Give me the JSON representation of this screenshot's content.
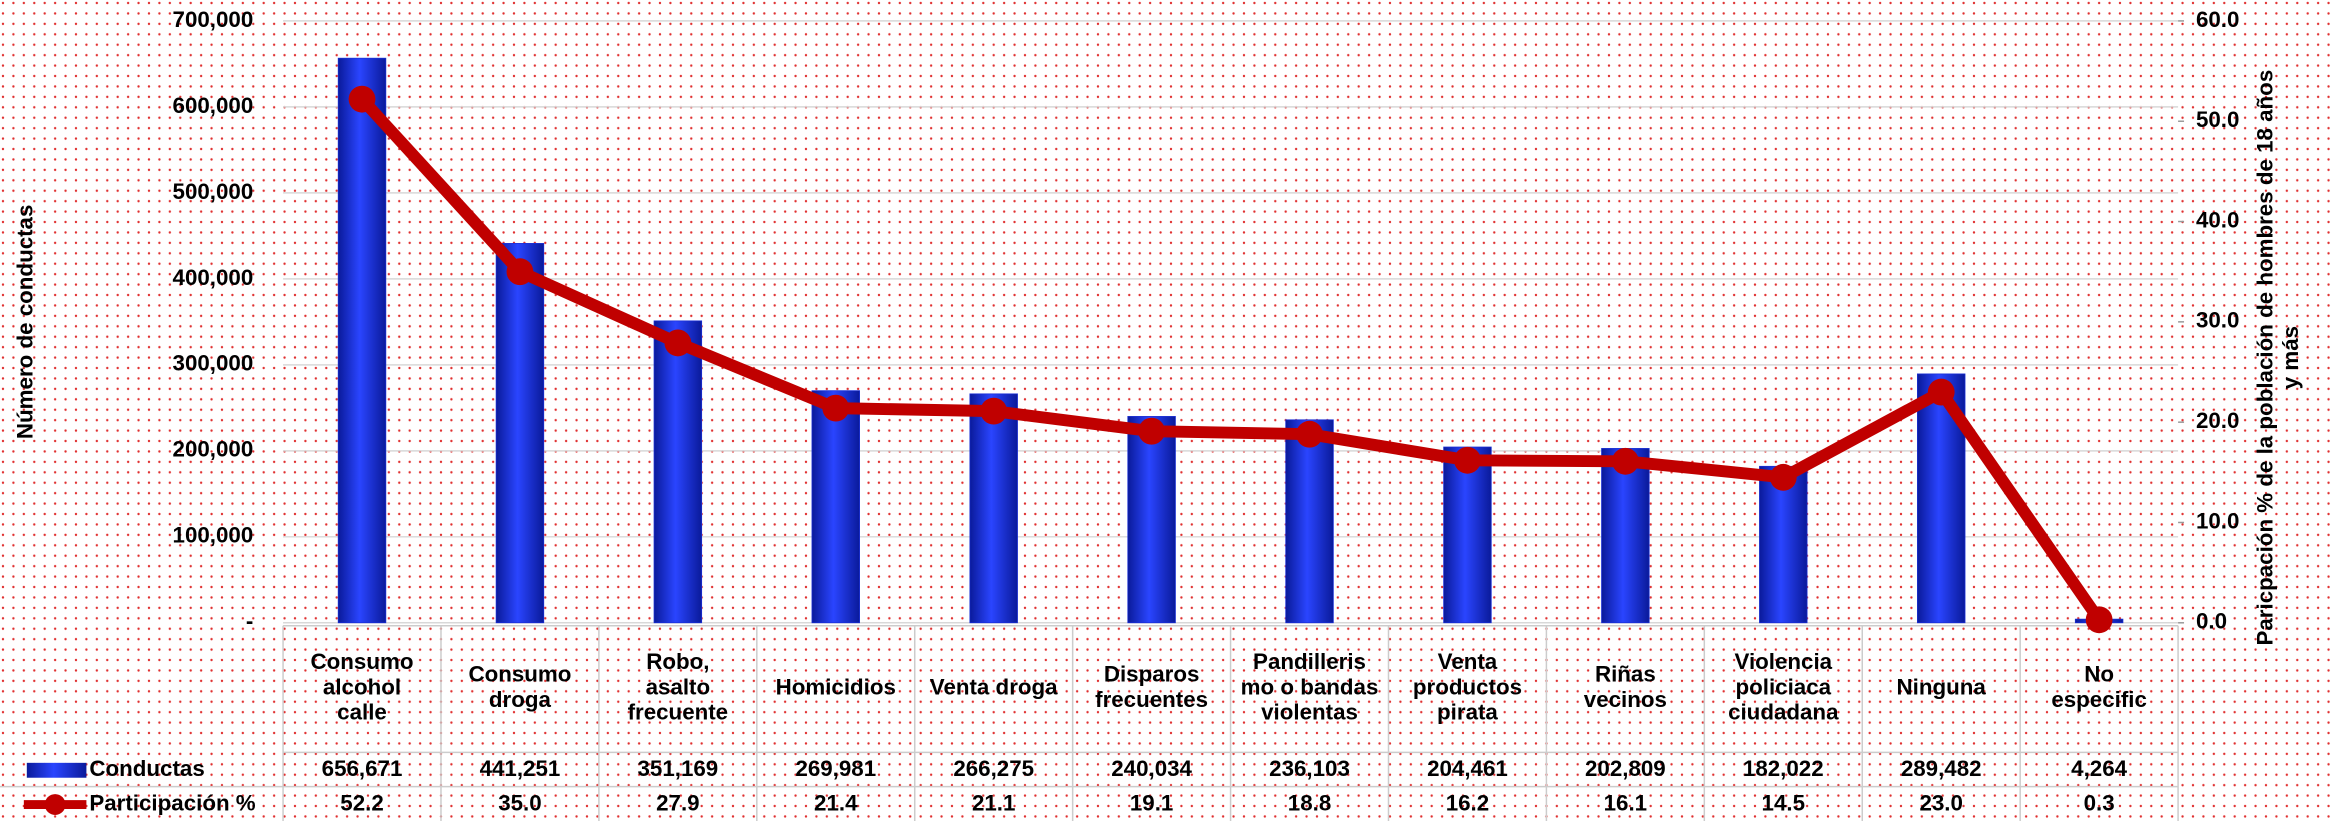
{
  "chart_data": {
    "type": "bar_line",
    "y_label": "Número de conductas",
    "y2_label": "Paricpación % de la población de hombres de 18 años y más",
    "categories": [
      "Consumo alcohol calle",
      "Consumo droga",
      "Robo, asalto frecuente",
      "Homicidios",
      "Venta droga",
      "Disparos frecuentes",
      "Pandillerismo o bandas violentas",
      "Venta productos pirata",
      "Riñas vecinos",
      "Violencia policiaca ciudadana",
      "Ninguna",
      "No especific"
    ],
    "series": [
      {
        "name": "Conductas",
        "color": "#1a2fd6",
        "type": "bar",
        "values": [
          656671,
          441251,
          351169,
          269981,
          266275,
          240034,
          236103,
          204461,
          202809,
          182022,
          289482,
          4264
        ],
        "value_labels": [
          "656,671",
          "441,251",
          "351,169",
          "269,981",
          "266,275",
          "240,034",
          "236,103",
          "204,461",
          "202,809",
          "182,022",
          "289,482",
          "4,264"
        ]
      },
      {
        "name": "Participación %",
        "color": "#c00000",
        "type": "line",
        "axis": "y2",
        "values": [
          52.2,
          35.0,
          27.9,
          21.4,
          21.1,
          19.1,
          18.8,
          16.2,
          16.1,
          14.5,
          23.0,
          0.3
        ],
        "value_labels": [
          "52.2",
          "35.0",
          "27.9",
          "21.4",
          "21.1",
          "19.1",
          "18.8",
          "16.2",
          "16.1",
          "14.5",
          "23.0",
          "0.3"
        ]
      }
    ],
    "ylim": [
      0,
      700000
    ],
    "yticks": [
      {
        "value": 0,
        "label": "-"
      },
      {
        "value": 100000,
        "label": "100,000"
      },
      {
        "value": 200000,
        "label": "200,000"
      },
      {
        "value": 300000,
        "label": "300,000"
      },
      {
        "value": 400000,
        "label": "400,000"
      },
      {
        "value": 500000,
        "label": "500,000"
      },
      {
        "value": 600000,
        "label": "600,000"
      },
      {
        "value": 700000,
        "label": "700,000"
      }
    ],
    "y2lim": [
      0,
      60
    ],
    "y2ticks": [
      {
        "value": 0,
        "label": "0.0"
      },
      {
        "value": 10,
        "label": "10.0"
      },
      {
        "value": 20,
        "label": "20.0"
      },
      {
        "value": 30,
        "label": "30.0"
      },
      {
        "value": 40,
        "label": "40.0"
      },
      {
        "value": 50,
        "label": "50.0"
      },
      {
        "value": 60,
        "label": "60.0"
      }
    ],
    "grid": true
  }
}
